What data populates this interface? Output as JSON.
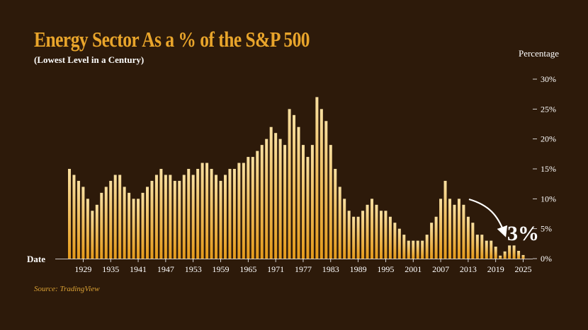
{
  "header": {
    "title": "Energy Sector As a % of the S&P 500",
    "subtitle": "(Lowest Level in a Century)"
  },
  "footer": {
    "source": "Source: TradingView"
  },
  "chart_data": {
    "type": "bar",
    "title": "Energy Sector As a % of the S&P 500",
    "subtitle": "(Lowest Level in a Century)",
    "xlabel": "Date",
    "ylabel": "Percentage",
    "x_tick_labels": [
      "1929",
      "1935",
      "1941",
      "1947",
      "1953",
      "1959",
      "1965",
      "1971",
      "1977",
      "1983",
      "1989",
      "1995",
      "2001",
      "2007",
      "2013",
      "2019",
      "2025"
    ],
    "y_tick_labels": [
      "0%",
      "5%",
      "10%",
      "15%",
      "20%",
      "25%",
      "30%"
    ],
    "ylim": [
      0,
      30
    ],
    "grid": false,
    "colors": {
      "bar_top": "#f8dfa0",
      "bar_bottom": "#e49a1a",
      "title": "#e9a52b"
    },
    "annotation": "3%",
    "categories": [
      1926,
      1927,
      1928,
      1929,
      1930,
      1931,
      1932,
      1933,
      1934,
      1935,
      1936,
      1937,
      1938,
      1939,
      1940,
      1941,
      1942,
      1943,
      1944,
      1945,
      1946,
      1947,
      1948,
      1949,
      1950,
      1951,
      1952,
      1953,
      1954,
      1955,
      1956,
      1957,
      1958,
      1959,
      1960,
      1961,
      1962,
      1963,
      1964,
      1965,
      1966,
      1967,
      1968,
      1969,
      1970,
      1971,
      1972,
      1973,
      1974,
      1975,
      1976,
      1977,
      1978,
      1979,
      1980,
      1981,
      1982,
      1983,
      1984,
      1985,
      1986,
      1987,
      1988,
      1989,
      1990,
      1991,
      1992,
      1993,
      1994,
      1995,
      1996,
      1997,
      1998,
      1999,
      2000,
      2001,
      2002,
      2003,
      2004,
      2005,
      2006,
      2007,
      2008,
      2009,
      2010,
      2011,
      2012,
      2013,
      2014,
      2015,
      2016,
      2017,
      2018,
      2019,
      2020,
      2021,
      2022,
      2023,
      2024,
      2025
    ],
    "values": [
      15,
      14,
      13,
      12,
      10,
      8,
      9,
      11,
      12,
      13,
      14,
      14,
      12,
      11,
      10,
      10,
      11,
      12,
      13,
      14,
      15,
      14,
      14,
      13,
      13,
      14,
      15,
      14,
      15,
      16,
      16,
      15,
      14,
      13,
      14,
      15,
      15,
      16,
      16,
      17,
      17,
      18,
      19,
      20,
      22,
      21,
      20,
      19,
      25,
      24,
      22,
      19,
      17,
      19,
      27,
      25,
      23,
      19,
      15,
      12,
      10,
      8,
      7,
      7,
      8,
      9,
      10,
      9,
      8,
      8,
      7,
      6,
      5,
      4,
      3,
      3,
      3,
      3,
      4,
      6,
      7,
      10,
      13,
      10,
      9,
      10,
      9,
      7,
      6,
      4,
      4,
      3,
      3,
      2,
      0.5,
      1.2,
      2.2,
      2.2,
      1.3,
      0.6
    ]
  }
}
